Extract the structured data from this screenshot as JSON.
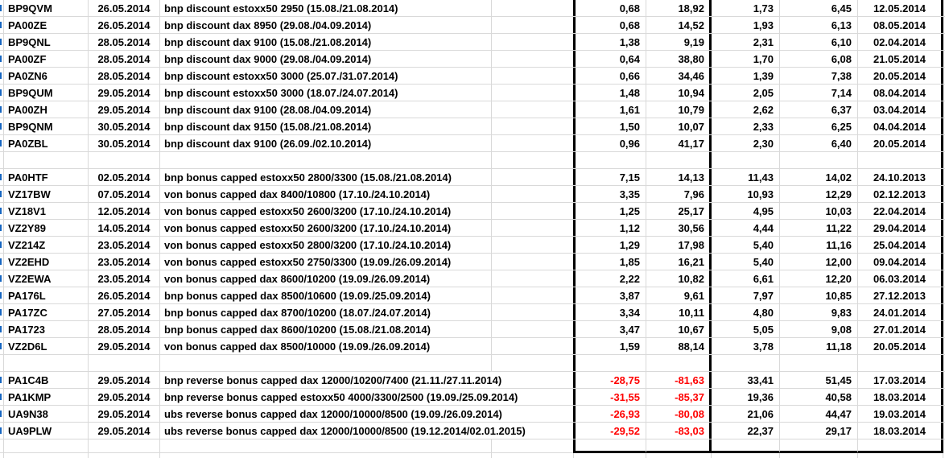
{
  "colors": {
    "negative_value": "#ff0000",
    "clipped_fragment_blue": "#1565c0"
  },
  "table": {
    "rows": [
      {
        "code": "BP9QVM",
        "date": "26.05.2014",
        "description": "bnp discount estoxx50 2950 (15.08./21.08.2014)",
        "v1": "0,68",
        "v2": "18,92",
        "v3": "1,73",
        "v4": "6,45",
        "date2": "12.05.2014"
      },
      {
        "code": "PA00ZE",
        "date": "26.05.2014",
        "description": "bnp discount dax 8950 (29.08./04.09.2014)",
        "v1": "0,68",
        "v2": "14,52",
        "v3": "1,93",
        "v4": "6,13",
        "date2": "08.05.2014"
      },
      {
        "code": "BP9QNL",
        "date": "28.05.2014",
        "description": "bnp discount dax 9100 (15.08./21.08.2014)",
        "v1": "1,38",
        "v2": "9,19",
        "v3": "2,31",
        "v4": "6,10",
        "date2": "02.04.2014"
      },
      {
        "code": "PA00ZF",
        "date": "28.05.2014",
        "description": "bnp discount dax 9000 (29.08./04.09.2014)",
        "v1": "0,64",
        "v2": "38,80",
        "v3": "1,70",
        "v4": "6,08",
        "date2": "21.05.2014"
      },
      {
        "code": "PA0ZN6",
        "date": "28.05.2014",
        "description": "bnp discount estoxx50 3000 (25.07./31.07.2014)",
        "v1": "0,66",
        "v2": "34,46",
        "v3": "1,39",
        "v4": "7,38",
        "date2": "20.05.2014"
      },
      {
        "code": "BP9QUM",
        "date": "29.05.2014",
        "description": "bnp discount estoxx50 3000 (18.07./24.07.2014)",
        "v1": "1,48",
        "v2": "10,94",
        "v3": "2,05",
        "v4": "7,14",
        "date2": "08.04.2014"
      },
      {
        "code": "PA00ZH",
        "date": "29.05.2014",
        "description": "bnp discount dax 9100 (28.08./04.09.2014)",
        "v1": "1,61",
        "v2": "10,79",
        "v3": "2,62",
        "v4": "6,37",
        "date2": "03.04.2014"
      },
      {
        "code": "BP9QNM",
        "date": "30.05.2014",
        "description": "bnp discount dax 9150 (15.08./21.08.2014)",
        "v1": "1,50",
        "v2": "10,07",
        "v3": "2,33",
        "v4": "6,25",
        "date2": "04.04.2014"
      },
      {
        "code": "PA0ZBL",
        "date": "30.05.2014",
        "description": "bnp discount dax 9100 (26.09./02.10.2014)",
        "v1": "0,96",
        "v2": "41,17",
        "v3": "2,30",
        "v4": "6,40",
        "date2": "20.05.2014"
      },
      {
        "code": "",
        "date": "",
        "description": "",
        "v1": "",
        "v2": "",
        "v3": "",
        "v4": "",
        "date2": ""
      },
      {
        "code": "PA0HTF",
        "date": "02.05.2014",
        "description": "bnp bonus capped estoxx50 2800/3300 (15.08./21.08.2014)",
        "v1": "7,15",
        "v2": "14,13",
        "v3": "11,43",
        "v4": "14,02",
        "date2": "24.10.2013"
      },
      {
        "code": "VZ17BW",
        "date": "07.05.2014",
        "description": "von bonus capped dax 8400/10800 (17.10./24.10.2014)",
        "v1": "3,35",
        "v2": "7,96",
        "v3": "10,93",
        "v4": "12,29",
        "date2": "02.12.2013"
      },
      {
        "code": "VZ18V1",
        "date": "12.05.2014",
        "description": "von bonus capped estoxx50 2600/3200 (17.10./24.10.2014)",
        "v1": "1,25",
        "v2": "25,17",
        "v3": "4,95",
        "v4": "10,03",
        "date2": "22.04.2014"
      },
      {
        "code": "VZ2Y89",
        "date": "14.05.2014",
        "description": "von bonus capped estoxx50 2600/3200 (17.10./24.10.2014)",
        "v1": "1,12",
        "v2": "30,56",
        "v3": "4,44",
        "v4": "11,22",
        "date2": "29.04.2014"
      },
      {
        "code": "VZ214Z",
        "date": "23.05.2014",
        "description": "von bonus capped estoxx50 2800/3200 (17.10./24.10.2014)",
        "v1": "1,29",
        "v2": "17,98",
        "v3": "5,40",
        "v4": "11,16",
        "date2": "25.04.2014"
      },
      {
        "code": "VZ2EHD",
        "date": "23.05.2014",
        "description": "von bonus capped estoxx50 2750/3300 (19.09./26.09.2014)",
        "v1": "1,85",
        "v2": "16,21",
        "v3": "5,40",
        "v4": "12,00",
        "date2": "09.04.2014"
      },
      {
        "code": "VZ2EWA",
        "date": "23.05.2014",
        "description": "von bonus capped dax 8600/10200 (19.09./26.09.2014)",
        "v1": "2,22",
        "v2": "10,82",
        "v3": "6,61",
        "v4": "12,20",
        "date2": "06.03.2014"
      },
      {
        "code": "PA176L",
        "date": "26.05.2014",
        "description": "bnp bonus capped dax 8500/10600 (19.09./25.09.2014)",
        "v1": "3,87",
        "v2": "9,61",
        "v3": "7,97",
        "v4": "10,85",
        "date2": "27.12.2013"
      },
      {
        "code": "PA17ZC",
        "date": "27.05.2014",
        "description": "bnp bonus capped dax 8700/10200 (18.07./24.07.2014)",
        "v1": "3,34",
        "v2": "10,11",
        "v3": "4,80",
        "v4": "9,83",
        "date2": "24.01.2014"
      },
      {
        "code": "PA1723",
        "date": "28.05.2014",
        "description": "bnp bonus capped dax 8600/10200 (15.08./21.08.2014)",
        "v1": "3,47",
        "v2": "10,67",
        "v3": "5,05",
        "v4": "9,08",
        "date2": "27.01.2014"
      },
      {
        "code": "VZ2D6L",
        "date": "29.05.2014",
        "description": "von bonus capped dax 8500/10000 (19.09./26.09.2014)",
        "v1": "1,59",
        "v2": "88,14",
        "v3": "3,78",
        "v4": "11,18",
        "date2": "20.05.2014"
      },
      {
        "code": "",
        "date": "",
        "description": "",
        "v1": "",
        "v2": "",
        "v3": "",
        "v4": "",
        "date2": ""
      },
      {
        "code": "PA1C4B",
        "date": "29.05.2014",
        "description": "bnp reverse bonus capped dax 12000/10200/7400 (21.11./27.11.2014)",
        "v1": "-28,75",
        "v2": "-81,63",
        "v3": "33,41",
        "v4": "51,45",
        "date2": "17.03.2014"
      },
      {
        "code": "PA1KMP",
        "date": "29.05.2014",
        "description": "bnp reverse bonus capped estoxx50 4000/3300/2500 (19.09./25.09.2014)",
        "v1": "-31,55",
        "v2": "-85,37",
        "v3": "19,36",
        "v4": "40,58",
        "date2": "18.03.2014"
      },
      {
        "code": "UA9N38",
        "date": "29.05.2014",
        "description": "ubs reverse bonus capped dax 12000/10000/8500 (19.09./26.09.2014)",
        "v1": "-26,93",
        "v2": "-80,08",
        "v3": "21,06",
        "v4": "44,47",
        "date2": "19.03.2014"
      },
      {
        "code": "UA9PLW",
        "date": "29.05.2014",
        "description": "ubs reverse bonus capped dax 12000/10000/8500 (19.12.2014/02.01.2015)",
        "v1": "-29,52",
        "v2": "-83,03",
        "v3": "22,37",
        "v4": "29,17",
        "date2": "18.03.2014"
      },
      {
        "code": "",
        "date": "",
        "description": "",
        "v1": "",
        "v2": "",
        "v3": "",
        "v4": "",
        "date2": ""
      }
    ]
  }
}
